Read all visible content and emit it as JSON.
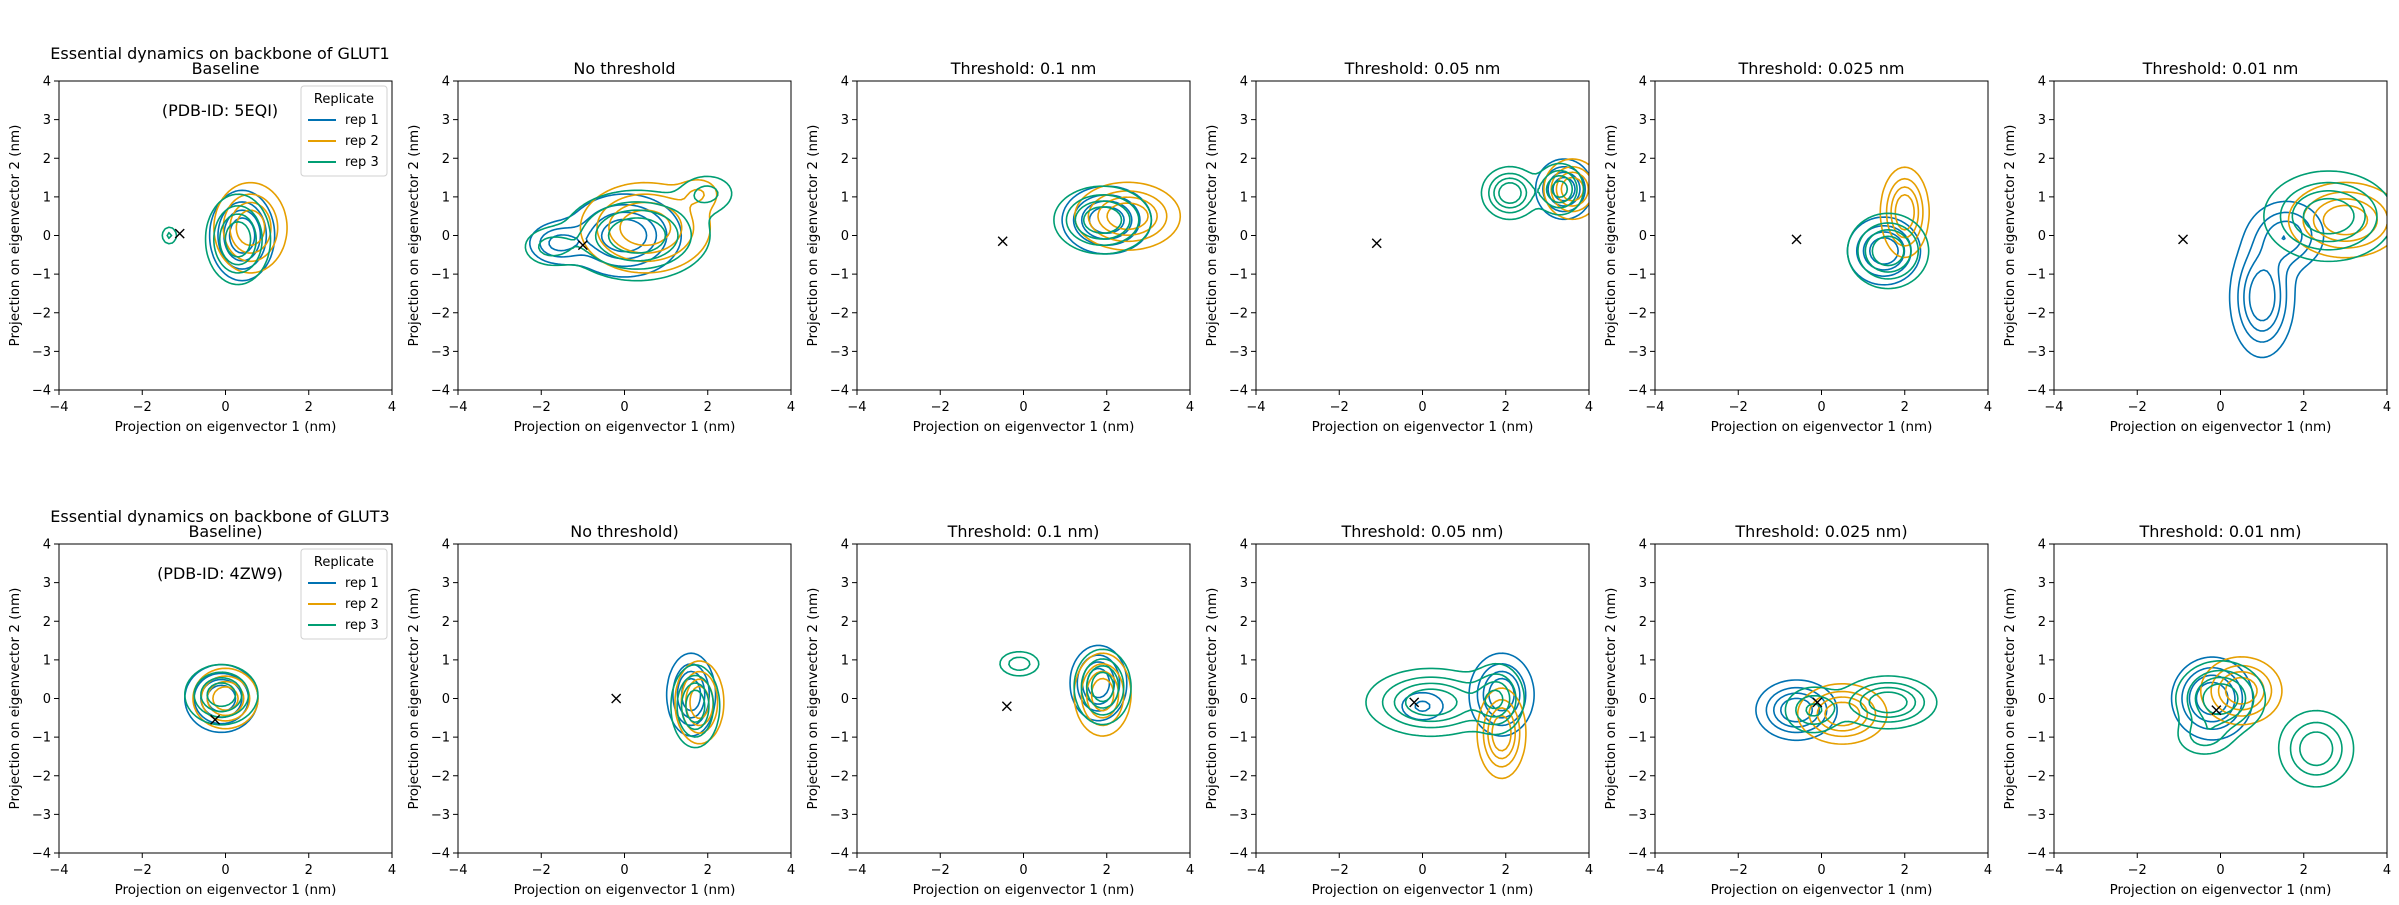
{
  "figure": {
    "rows": [
      {
        "title_line1": "Essential dynamics on backbone of GLUT1",
        "title_line2": "(PDB-ID: 5EQI)"
      },
      {
        "title_line1": "Essential dynamics on backbone of GLUT3",
        "title_line2": "(PDB-ID: 4ZW9)"
      }
    ]
  },
  "chart_data": [
    {
      "type": "contour",
      "panel_title": "Baseline",
      "xlabel": "Projection on eigenvector 1 (nm)",
      "ylabel": "Projection on eigenvector 2 (nm)",
      "xlim": [
        -4,
        4
      ],
      "ylim": [
        -4,
        4
      ],
      "xticks": [
        -4,
        -2,
        0,
        2,
        4
      ],
      "yticks": [
        -4,
        -3,
        -2,
        -1,
        0,
        1,
        2,
        3,
        4
      ],
      "marker_x": {
        "x": -1.1,
        "y": 0.05
      },
      "legend": {
        "title": "Replicate",
        "entries": [
          "rep 1",
          "rep 2",
          "rep 3"
        ],
        "location": "upper right"
      },
      "series": [
        {
          "name": "rep 1",
          "color": "#0072b2",
          "peaks": [
            {
              "x": 0.4,
              "y": 0.0,
              "sx": 0.4,
              "sy": 0.6,
              "w": 1
            }
          ]
        },
        {
          "name": "rep 2",
          "color": "#e69f00",
          "peaks": [
            {
              "x": 0.6,
              "y": 0.2,
              "sx": 0.45,
              "sy": 0.6,
              "w": 1
            }
          ]
        },
        {
          "name": "rep 3",
          "color": "#009e73",
          "peaks": [
            {
              "x": 0.3,
              "y": -0.1,
              "sx": 0.4,
              "sy": 0.6,
              "w": 1
            },
            {
              "x": -1.35,
              "y": 0.0,
              "sx": 0.12,
              "sy": 0.15,
              "w": 0.4
            }
          ]
        }
      ]
    },
    {
      "type": "contour",
      "panel_title": "No threshold",
      "xlabel": "Projection on eigenvector 1 (nm)",
      "ylabel": "Projection on eigenvector 2 (nm)",
      "xlim": [
        -4,
        4
      ],
      "ylim": [
        -4,
        4
      ],
      "xticks": [
        -4,
        -2,
        0,
        2,
        4
      ],
      "yticks": [
        -4,
        -3,
        -2,
        -1,
        0,
        1,
        2,
        3,
        4
      ],
      "marker_x": {
        "x": -1.0,
        "y": -0.25
      },
      "series": [
        {
          "name": "rep 1",
          "color": "#0072b2",
          "peaks": [
            {
              "x": 0.0,
              "y": 0.0,
              "sx": 0.7,
              "sy": 0.55,
              "w": 1
            },
            {
              "x": -1.6,
              "y": -0.2,
              "sx": 0.4,
              "sy": 0.3,
              "w": 0.6
            }
          ]
        },
        {
          "name": "rep 2",
          "color": "#e69f00",
          "peaks": [
            {
              "x": 0.5,
              "y": 0.2,
              "sx": 0.8,
              "sy": 0.6,
              "w": 1
            },
            {
              "x": 1.8,
              "y": 1.1,
              "sx": 0.3,
              "sy": 0.25,
              "w": 0.3
            }
          ]
        },
        {
          "name": "rep 3",
          "color": "#009e73",
          "peaks": [
            {
              "x": 0.3,
              "y": 0.0,
              "sx": 0.9,
              "sy": 0.6,
              "w": 1
            },
            {
              "x": 2.0,
              "y": 1.1,
              "sx": 0.4,
              "sy": 0.3,
              "w": 0.4
            },
            {
              "x": -1.8,
              "y": -0.3,
              "sx": 0.4,
              "sy": 0.3,
              "w": 0.4
            }
          ]
        }
      ]
    },
    {
      "type": "contour",
      "panel_title": "Threshold: 0.1 nm",
      "xlabel": "Projection on eigenvector 1 (nm)",
      "ylabel": "Projection on eigenvector 2 (nm)",
      "xlim": [
        -4,
        4
      ],
      "ylim": [
        -4,
        4
      ],
      "xticks": [
        -4,
        -2,
        0,
        2,
        4
      ],
      "yticks": [
        -4,
        -3,
        -2,
        -1,
        0,
        1,
        2,
        3,
        4
      ],
      "marker_x": {
        "x": -0.5,
        "y": -0.15
      },
      "series": [
        {
          "name": "rep 1",
          "color": "#0072b2",
          "peaks": [
            {
              "x": 2.0,
              "y": 0.4,
              "sx": 0.55,
              "sy": 0.45,
              "w": 1
            }
          ]
        },
        {
          "name": "rep 2",
          "color": "#e69f00",
          "peaks": [
            {
              "x": 2.5,
              "y": 0.5,
              "sx": 0.65,
              "sy": 0.45,
              "w": 1
            }
          ]
        },
        {
          "name": "rep 3",
          "color": "#009e73",
          "peaks": [
            {
              "x": 1.9,
              "y": 0.4,
              "sx": 0.6,
              "sy": 0.45,
              "w": 1
            }
          ]
        }
      ]
    },
    {
      "type": "contour",
      "panel_title": "Threshold: 0.05 nm",
      "xlabel": "Projection on eigenvector 1 (nm)",
      "ylabel": "Projection on eigenvector 2 (nm)",
      "xlim": [
        -4,
        4
      ],
      "ylim": [
        -4,
        4
      ],
      "xticks": [
        -4,
        -2,
        0,
        2,
        4
      ],
      "yticks": [
        -4,
        -3,
        -2,
        -1,
        0,
        1,
        2,
        3,
        4
      ],
      "marker_x": {
        "x": -1.1,
        "y": -0.2
      },
      "series": [
        {
          "name": "rep 1",
          "color": "#0072b2",
          "peaks": [
            {
              "x": 3.4,
              "y": 1.2,
              "sx": 0.35,
              "sy": 0.4,
              "w": 1
            }
          ]
        },
        {
          "name": "rep 2",
          "color": "#e69f00",
          "peaks": [
            {
              "x": 3.6,
              "y": 1.2,
              "sx": 0.35,
              "sy": 0.4,
              "w": 1
            }
          ]
        },
        {
          "name": "rep 3",
          "color": "#009e73",
          "peaks": [
            {
              "x": 2.1,
              "y": 1.1,
              "sx": 0.35,
              "sy": 0.35,
              "w": 1
            },
            {
              "x": 3.3,
              "y": 1.2,
              "sx": 0.3,
              "sy": 0.35,
              "w": 0.9
            }
          ]
        }
      ]
    },
    {
      "type": "contour",
      "panel_title": "Threshold: 0.025 nm",
      "xlabel": "Projection on eigenvector 1 (nm)",
      "ylabel": "Projection on eigenvector 2 (nm)",
      "xlim": [
        -4,
        4
      ],
      "ylim": [
        -4,
        4
      ],
      "xticks": [
        -4,
        -2,
        0,
        2,
        4
      ],
      "yticks": [
        -4,
        -3,
        -2,
        -1,
        0,
        1,
        2,
        3,
        4
      ],
      "marker_x": {
        "x": -0.6,
        "y": -0.1
      },
      "series": [
        {
          "name": "rep 1",
          "color": "#0072b2",
          "peaks": [
            {
              "x": 1.5,
              "y": -0.4,
              "sx": 0.45,
              "sy": 0.45,
              "w": 1
            }
          ]
        },
        {
          "name": "rep 2",
          "color": "#e69f00",
          "peaks": [
            {
              "x": 2.0,
              "y": 0.6,
              "sx": 0.3,
              "sy": 0.6,
              "w": 1
            }
          ]
        },
        {
          "name": "rep 3",
          "color": "#009e73",
          "peaks": [
            {
              "x": 1.6,
              "y": -0.4,
              "sx": 0.5,
              "sy": 0.5,
              "w": 1
            }
          ]
        }
      ]
    },
    {
      "type": "contour",
      "panel_title": "Threshold: 0.01 nm",
      "xlabel": "Projection on eigenvector 1 (nm)",
      "ylabel": "Projection on eigenvector 2 (nm)",
      "xlim": [
        -4,
        4
      ],
      "ylim": [
        -4,
        4
      ],
      "xticks": [
        -4,
        -2,
        0,
        2,
        4
      ],
      "yticks": [
        -4,
        -3,
        -2,
        -1,
        0,
        1,
        2,
        3,
        4
      ],
      "marker_x": {
        "x": -0.9,
        "y": -0.1
      },
      "series": [
        {
          "name": "rep 1",
          "color": "#0072b2",
          "peaks": [
            {
              "x": 1.0,
              "y": -1.6,
              "sx": 0.4,
              "sy": 0.8,
              "w": 1
            },
            {
              "x": 1.6,
              "y": 0.0,
              "sx": 0.5,
              "sy": 0.5,
              "w": 0.7
            }
          ]
        },
        {
          "name": "rep 2",
          "color": "#e69f00",
          "peaks": [
            {
              "x": 3.0,
              "y": 0.4,
              "sx": 0.7,
              "sy": 0.5,
              "w": 1
            }
          ]
        },
        {
          "name": "rep 3",
          "color": "#009e73",
          "peaks": [
            {
              "x": 2.6,
              "y": 0.5,
              "sx": 0.8,
              "sy": 0.6,
              "w": 1
            }
          ]
        }
      ]
    },
    {
      "type": "contour",
      "panel_title": "Baseline)",
      "xlabel": "Projection on eigenvector 1 (nm)",
      "ylabel": "Projection on eigenvector 2 (nm)",
      "xlim": [
        -4,
        4
      ],
      "ylim": [
        -4,
        4
      ],
      "xticks": [
        -4,
        -2,
        0,
        2,
        4
      ],
      "yticks": [
        -4,
        -3,
        -2,
        -1,
        0,
        1,
        2,
        3,
        4
      ],
      "marker_x": {
        "x": -0.25,
        "y": -0.55
      },
      "legend": {
        "title": "Replicate",
        "entries": [
          "rep 1",
          "rep 2",
          "rep 3"
        ],
        "location": "upper right"
      },
      "series": [
        {
          "name": "rep 1",
          "color": "#0072b2",
          "peaks": [
            {
              "x": -0.1,
              "y": 0.0,
              "sx": 0.45,
              "sy": 0.45,
              "w": 1
            }
          ]
        },
        {
          "name": "rep 2",
          "color": "#e69f00",
          "peaks": [
            {
              "x": 0.0,
              "y": 0.0,
              "sx": 0.4,
              "sy": 0.4,
              "w": 1
            }
          ]
        },
        {
          "name": "rep 3",
          "color": "#009e73",
          "peaks": [
            {
              "x": -0.1,
              "y": 0.1,
              "sx": 0.45,
              "sy": 0.4,
              "w": 1
            }
          ]
        }
      ]
    },
    {
      "type": "contour",
      "panel_title": "No threshold)",
      "xlabel": "Projection on eigenvector 1 (nm)",
      "ylabel": "Projection on eigenvector 2 (nm)",
      "xlim": [
        -4,
        4
      ],
      "ylim": [
        -4,
        4
      ],
      "xticks": [
        -4,
        -2,
        0,
        2,
        4
      ],
      "yticks": [
        -4,
        -3,
        -2,
        -1,
        0,
        1,
        2,
        3,
        4
      ],
      "marker_x": {
        "x": -0.2,
        "y": 0.0
      },
      "series": [
        {
          "name": "rep 1",
          "color": "#0072b2",
          "peaks": [
            {
              "x": 1.6,
              "y": 0.1,
              "sx": 0.3,
              "sy": 0.55,
              "w": 1
            }
          ]
        },
        {
          "name": "rep 2",
          "color": "#e69f00",
          "peaks": [
            {
              "x": 1.8,
              "y": -0.1,
              "sx": 0.3,
              "sy": 0.55,
              "w": 1
            }
          ]
        },
        {
          "name": "rep 3",
          "color": "#009e73",
          "peaks": [
            {
              "x": 1.7,
              "y": -0.2,
              "sx": 0.3,
              "sy": 0.55,
              "w": 1
            }
          ]
        }
      ]
    },
    {
      "type": "contour",
      "panel_title": "Threshold: 0.1 nm)",
      "xlabel": "Projection on eigenvector 1 (nm)",
      "ylabel": "Projection on eigenvector 2 (nm)",
      "xlim": [
        -4,
        4
      ],
      "ylim": [
        -4,
        4
      ],
      "xticks": [
        -4,
        -2,
        0,
        2,
        4
      ],
      "yticks": [
        -4,
        -3,
        -2,
        -1,
        0,
        1,
        2,
        3,
        4
      ],
      "marker_x": {
        "x": -0.4,
        "y": -0.2
      },
      "series": [
        {
          "name": "rep 1",
          "color": "#0072b2",
          "peaks": [
            {
              "x": 1.8,
              "y": 0.4,
              "sx": 0.35,
              "sy": 0.5,
              "w": 1
            }
          ]
        },
        {
          "name": "rep 2",
          "color": "#e69f00",
          "peaks": [
            {
              "x": 1.9,
              "y": 0.1,
              "sx": 0.35,
              "sy": 0.55,
              "w": 1
            }
          ]
        },
        {
          "name": "rep 3",
          "color": "#009e73",
          "peaks": [
            {
              "x": 1.9,
              "y": 0.3,
              "sx": 0.35,
              "sy": 0.5,
              "w": 1
            },
            {
              "x": -0.1,
              "y": 0.9,
              "sx": 0.3,
              "sy": 0.2,
              "w": 0.5
            }
          ]
        }
      ]
    },
    {
      "type": "contour",
      "panel_title": "Threshold: 0.05 nm)",
      "xlabel": "Projection on eigenvector 1 (nm)",
      "ylabel": "Projection on eigenvector 2 (nm)",
      "xlim": [
        -4,
        4
      ],
      "ylim": [
        -4,
        4
      ],
      "xticks": [
        -4,
        -2,
        0,
        2,
        4
      ],
      "yticks": [
        -4,
        -3,
        -2,
        -1,
        0,
        1,
        2,
        3,
        4
      ],
      "marker_x": {
        "x": -0.2,
        "y": -0.1
      },
      "series": [
        {
          "name": "rep 1",
          "color": "#0072b2",
          "peaks": [
            {
              "x": 1.9,
              "y": 0.1,
              "sx": 0.4,
              "sy": 0.55,
              "w": 1
            },
            {
              "x": 0.0,
              "y": -0.2,
              "sx": 0.35,
              "sy": 0.25,
              "w": 0.4
            }
          ]
        },
        {
          "name": "rep 2",
          "color": "#e69f00",
          "peaks": [
            {
              "x": 1.9,
              "y": -0.9,
              "sx": 0.3,
              "sy": 0.6,
              "w": 1
            }
          ]
        },
        {
          "name": "rep 3",
          "color": "#009e73",
          "peaks": [
            {
              "x": 0.2,
              "y": -0.1,
              "sx": 0.8,
              "sy": 0.45,
              "w": 1
            },
            {
              "x": 1.8,
              "y": 0.0,
              "sx": 0.35,
              "sy": 0.5,
              "w": 0.7
            }
          ]
        }
      ]
    },
    {
      "type": "contour",
      "panel_title": "Threshold: 0.025 nm)",
      "xlabel": "Projection on eigenvector 1 (nm)",
      "ylabel": "Projection on eigenvector 2 (nm)",
      "xlim": [
        -4,
        4
      ],
      "ylim": [
        -4,
        4
      ],
      "xticks": [
        -4,
        -2,
        0,
        2,
        4
      ],
      "yticks": [
        -4,
        -3,
        -2,
        -1,
        0,
        1,
        2,
        3,
        4
      ],
      "marker_x": {
        "x": -0.1,
        "y": -0.1
      },
      "series": [
        {
          "name": "rep 1",
          "color": "#0072b2",
          "peaks": [
            {
              "x": -0.6,
              "y": -0.3,
              "sx": 0.5,
              "sy": 0.4,
              "w": 1
            }
          ]
        },
        {
          "name": "rep 2",
          "color": "#e69f00",
          "peaks": [
            {
              "x": 0.5,
              "y": -0.4,
              "sx": 0.55,
              "sy": 0.4,
              "w": 1
            }
          ]
        },
        {
          "name": "rep 3",
          "color": "#009e73",
          "peaks": [
            {
              "x": 1.6,
              "y": -0.1,
              "sx": 0.6,
              "sy": 0.35,
              "w": 1
            },
            {
              "x": -0.2,
              "y": -0.3,
              "sx": 0.4,
              "sy": 0.35,
              "w": 0.6
            }
          ]
        }
      ]
    },
    {
      "type": "contour",
      "panel_title": "Threshold: 0.01 nm)",
      "xlabel": "Projection on eigenvector 1 (nm)",
      "ylabel": "Projection on eigenvector 2 (nm)",
      "xlim": [
        -4,
        4
      ],
      "ylim": [
        -4,
        4
      ],
      "xticks": [
        -4,
        -2,
        0,
        2,
        4
      ],
      "yticks": [
        -4,
        -3,
        -2,
        -1,
        0,
        1,
        2,
        3,
        4
      ],
      "marker_x": {
        "x": -0.1,
        "y": -0.3
      },
      "series": [
        {
          "name": "rep 1",
          "color": "#0072b2",
          "peaks": [
            {
              "x": -0.2,
              "y": 0.0,
              "sx": 0.5,
              "sy": 0.55,
              "w": 1
            }
          ]
        },
        {
          "name": "rep 2",
          "color": "#e69f00",
          "peaks": [
            {
              "x": 0.5,
              "y": 0.2,
              "sx": 0.5,
              "sy": 0.45,
              "w": 1
            }
          ]
        },
        {
          "name": "rep 3",
          "color": "#009e73",
          "peaks": [
            {
              "x": 0.0,
              "y": 0.0,
              "sx": 0.55,
              "sy": 0.5,
              "w": 1
            },
            {
              "x": 2.3,
              "y": -1.3,
              "sx": 0.5,
              "sy": 0.55,
              "w": 0.75
            },
            {
              "x": -0.4,
              "y": -1.0,
              "sx": 0.4,
              "sy": 0.3,
              "w": 0.4
            }
          ]
        }
      ]
    }
  ]
}
